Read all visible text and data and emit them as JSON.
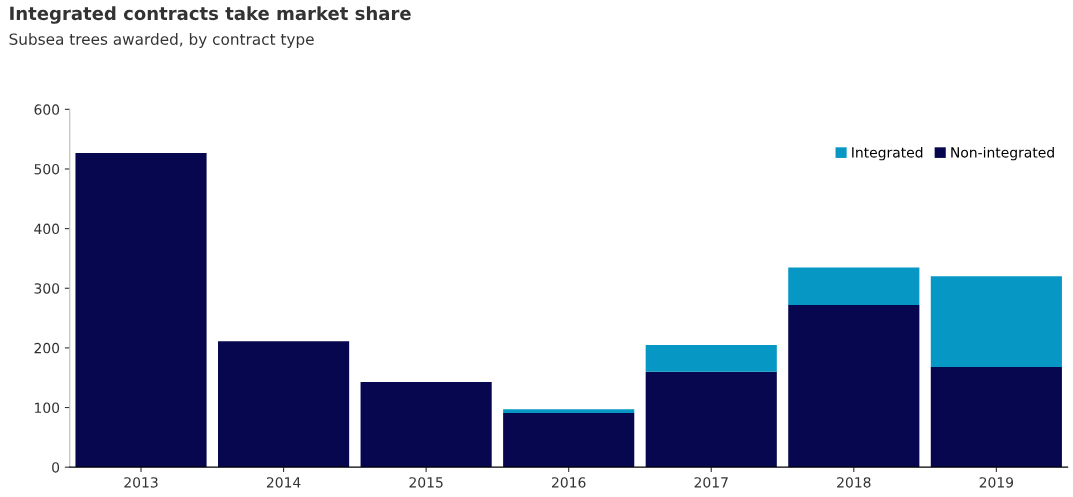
{
  "chart_data": {
    "type": "bar",
    "title": "Integrated contracts take market share",
    "subtitle": "Subsea trees awarded, by contract type",
    "categories": [
      "2013",
      "2014",
      "2015",
      "2016",
      "2017",
      "2018",
      "2019"
    ],
    "stacked": true,
    "series": [
      {
        "name": "Non-integrated",
        "color": "#07074f",
        "values": [
          527,
          211,
          143,
          91,
          160,
          272,
          168
        ]
      },
      {
        "name": "Integrated",
        "color": "#0797c4",
        "values": [
          0,
          0,
          0,
          6,
          45,
          63,
          152
        ]
      }
    ],
    "ylim": [
      0,
      600
    ],
    "yticks": [
      0,
      100,
      200,
      300,
      400,
      500,
      600
    ],
    "grid": false,
    "legend": "top right"
  }
}
